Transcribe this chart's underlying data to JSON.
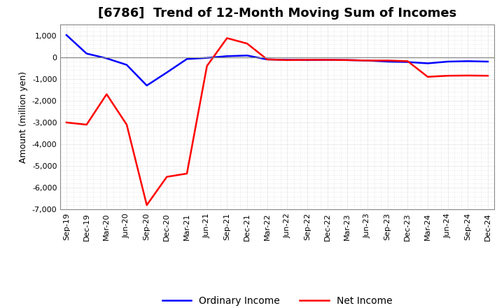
{
  "title": "[6786]  Trend of 12-Month Moving Sum of Incomes",
  "ylabel": "Amount (million yen)",
  "xlabels": [
    "Sep-19",
    "Dec-19",
    "Mar-20",
    "Jun-20",
    "Sep-20",
    "Dec-20",
    "Mar-21",
    "Jun-21",
    "Sep-21",
    "Dec-21",
    "Mar-22",
    "Jun-22",
    "Sep-22",
    "Dec-22",
    "Mar-23",
    "Jun-23",
    "Sep-23",
    "Dec-23",
    "Mar-24",
    "Jun-24",
    "Sep-24",
    "Dec-24"
  ],
  "ordinary_income": [
    1020,
    170,
    -50,
    -350,
    -1300,
    -700,
    -80,
    -30,
    50,
    80,
    -100,
    -120,
    -130,
    -120,
    -130,
    -150,
    -200,
    -220,
    -280,
    -200,
    -180,
    -200
  ],
  "net_income": [
    -3000,
    -3100,
    -1700,
    -3100,
    -6800,
    -5500,
    -5350,
    -400,
    880,
    630,
    -100,
    -130,
    -120,
    -120,
    -130,
    -150,
    -150,
    -180,
    -900,
    -850,
    -840,
    -850
  ],
  "ordinary_color": "#0000ff",
  "net_color": "#ff0000",
  "ylim": [
    -7000,
    1500
  ],
  "yticks": [
    -7000,
    -6000,
    -5000,
    -4000,
    -3000,
    -2000,
    -1000,
    0,
    1000
  ],
  "background_color": "#ffffff",
  "plot_bg_color": "#ffffff",
  "grid_color": "#aaaaaa",
  "title_fontsize": 13,
  "axis_fontsize": 9,
  "tick_fontsize": 8,
  "legend_fontsize": 10,
  "linewidth": 1.8
}
